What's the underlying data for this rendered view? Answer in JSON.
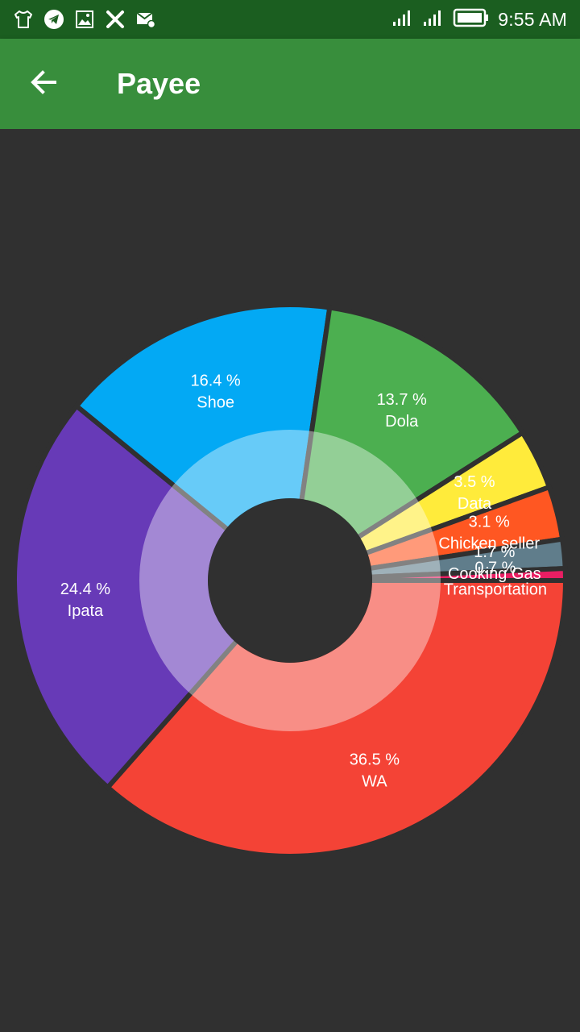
{
  "status_bar": {
    "time": "9:55 AM",
    "icons": [
      "shirt-icon",
      "telegram-icon",
      "image-icon",
      "x-app-icon",
      "mail-settings-icon",
      "signal-icon",
      "signal-icon",
      "battery-icon"
    ]
  },
  "app_bar": {
    "title": "Payee",
    "back_icon": "arrow-back-icon"
  },
  "colors": {
    "status_bar": "#1b5e20",
    "app_bar": "#388e3c",
    "background": "#303030"
  },
  "chart_data": {
    "type": "pie",
    "donut": true,
    "title": "",
    "start_angle_deg": 0,
    "slices": [
      {
        "label": "WA",
        "value": 36.5,
        "display": "36.5 %",
        "color": "#f44336"
      },
      {
        "label": "Ipata",
        "value": 24.4,
        "display": "24.4 %",
        "color": "#673ab7"
      },
      {
        "label": "Shoe",
        "value": 16.4,
        "display": "16.4 %",
        "color": "#03a9f4"
      },
      {
        "label": "Dola",
        "value": 13.7,
        "display": "13.7 %",
        "color": "#4caf50"
      },
      {
        "label": "Data",
        "value": 3.5,
        "display": "3.5 %",
        "color": "#ffeb3b"
      },
      {
        "label": "Chicken seller",
        "value": 3.1,
        "display": "3.1 %",
        "color": "#ff5722"
      },
      {
        "label": "Cooking Gas",
        "value": 1.7,
        "display": "1.7 %",
        "color": "#607d8b"
      },
      {
        "label": "Transportation",
        "value": 0.7,
        "display": "0.7 %",
        "color": "#e91e63"
      }
    ]
  }
}
